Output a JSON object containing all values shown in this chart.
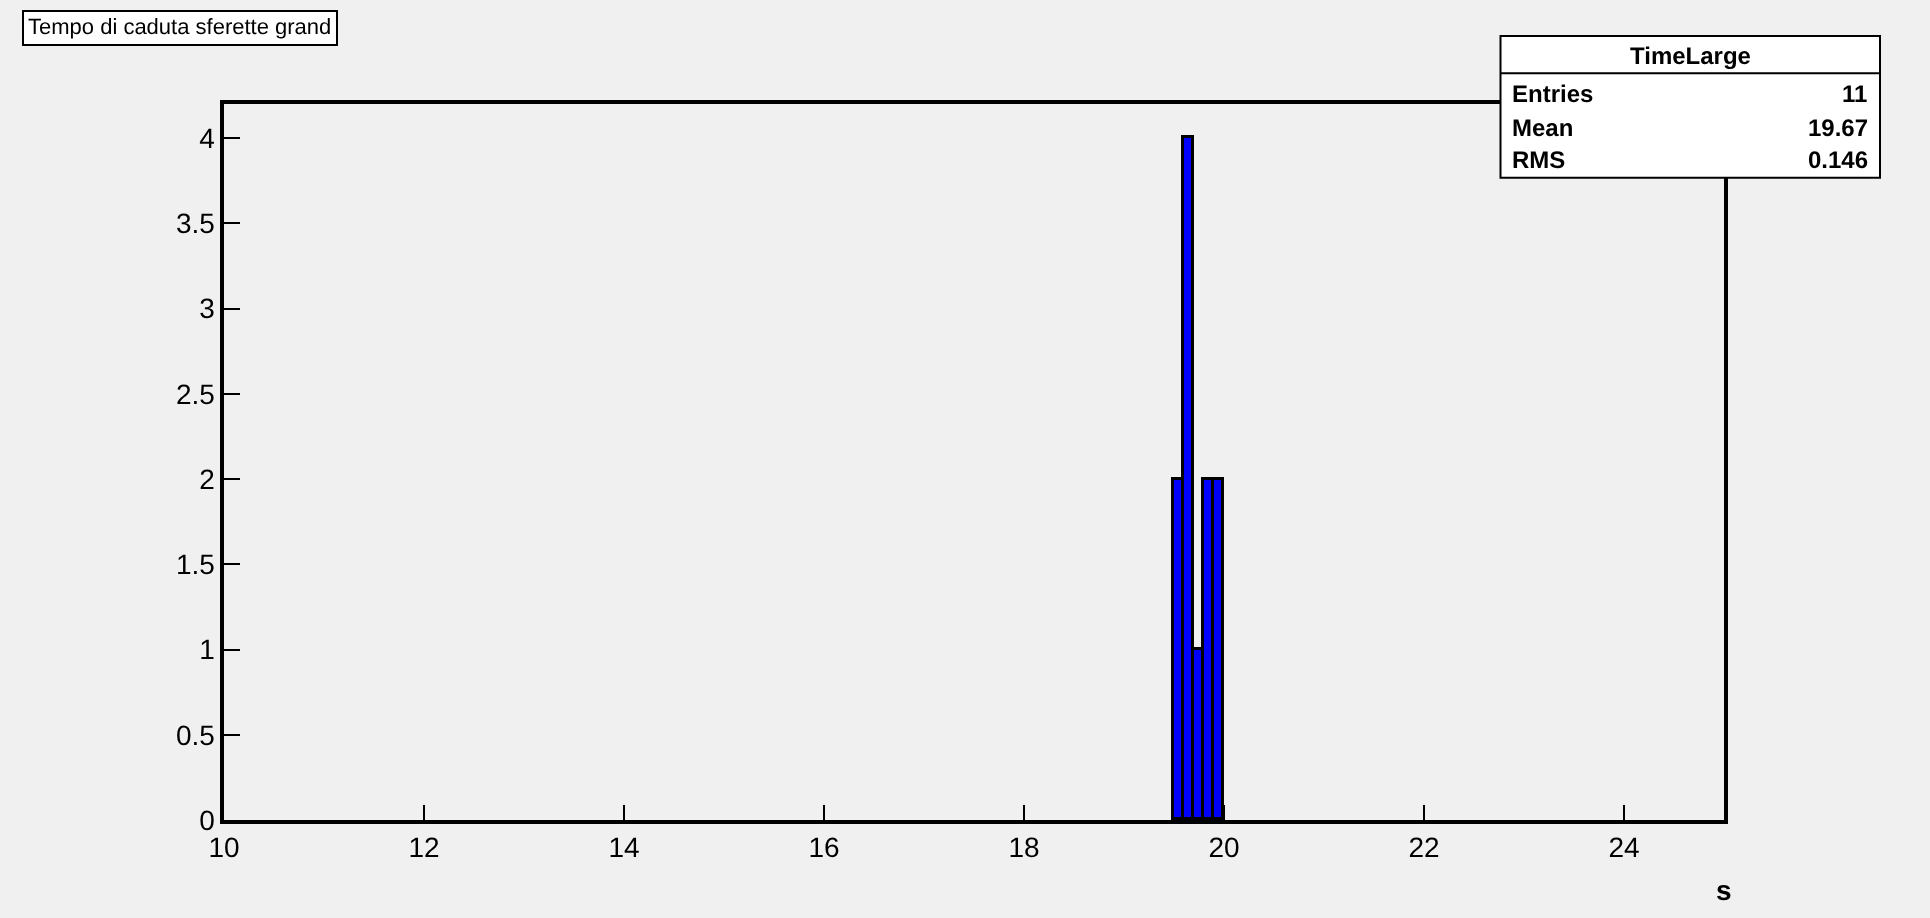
{
  "chart_data": {
    "type": "histogram",
    "title": "Tempo di caduta sferette grand",
    "xlabel": "s",
    "bins": [
      19.5,
      19.6,
      19.7,
      19.8,
      19.9,
      20.0
    ],
    "values": [
      2,
      4,
      1,
      2,
      2
    ],
    "color": "#0000ff",
    "xlim": [
      10,
      25
    ],
    "xticks": [
      10,
      12,
      14,
      16,
      18,
      20,
      22,
      24
    ],
    "ylim": [
      0,
      4.2
    ],
    "yticks": [
      0,
      0.5,
      1,
      1.5,
      2,
      2.5,
      3,
      3.5,
      4
    ],
    "grid": false,
    "annotations": [
      "TimeLarge",
      "Entries",
      "11",
      "Mean",
      "19.67",
      "RMS",
      "0.146"
    ]
  }
}
